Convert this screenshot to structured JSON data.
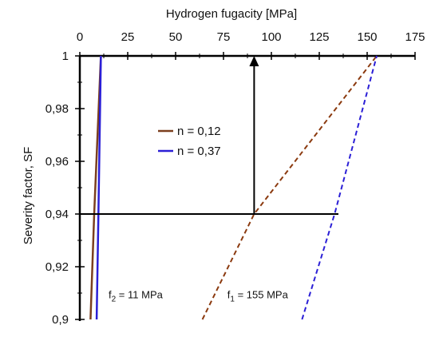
{
  "chart_data": {
    "type": "line",
    "title": "",
    "xlabel": "Hydrogen fugacity [MPa]",
    "ylabel": "Severity factor, SF",
    "xaxis_position": "top",
    "xlim": [
      0,
      175
    ],
    "ylim": [
      0.9,
      1.0
    ],
    "x_ticks": [
      0,
      25,
      50,
      75,
      100,
      125,
      150,
      175
    ],
    "x_tick_labels": [
      "0",
      "25",
      "50",
      "75",
      "100",
      "125",
      "150",
      "175"
    ],
    "y_ticks": [
      0.9,
      0.92,
      0.94,
      0.96,
      0.98,
      1.0
    ],
    "y_tick_labels": [
      "0,9",
      "0,92",
      "0,94",
      "0,96",
      "0,98",
      "1"
    ],
    "grid": false,
    "legend_placement": "center-left",
    "series": [
      {
        "name": "n = 0,12",
        "color": "#7b3f1e",
        "style": "solid",
        "x": [
          5.6,
          7.5,
          11.0
        ],
        "y": [
          0.9,
          0.94,
          1.0
        ]
      },
      {
        "name": "n = 0,37",
        "color": "#2b1fd6",
        "style": "solid",
        "x": [
          8.8,
          9.7,
          11.0
        ],
        "y": [
          0.9,
          0.94,
          1.0
        ]
      },
      {
        "color": "#8b3a0f",
        "style": "dashed",
        "x": [
          64,
          91,
          155
        ],
        "y": [
          0.9,
          0.94,
          1.0
        ]
      },
      {
        "color": "#2b1fd6",
        "style": "dashed",
        "x": [
          116,
          133,
          155
        ],
        "y": [
          0.9,
          0.94,
          1.0
        ]
      }
    ],
    "reference_lines": [
      {
        "kind": "horizontal",
        "y": 0.94,
        "x_from": 0,
        "x_to": 135
      },
      {
        "kind": "vertical-arrow",
        "x": 91,
        "y_from": 0.94,
        "y_to": 1.0
      }
    ],
    "annotations": [
      {
        "text_main": "f",
        "text_sub": "2",
        "text_rest": " = 11 MPa",
        "x": 15,
        "y": 0.908
      },
      {
        "text_main": "f",
        "text_sub": "1",
        "text_rest": " = 155 MPa",
        "x": 77,
        "y": 0.908
      }
    ]
  }
}
